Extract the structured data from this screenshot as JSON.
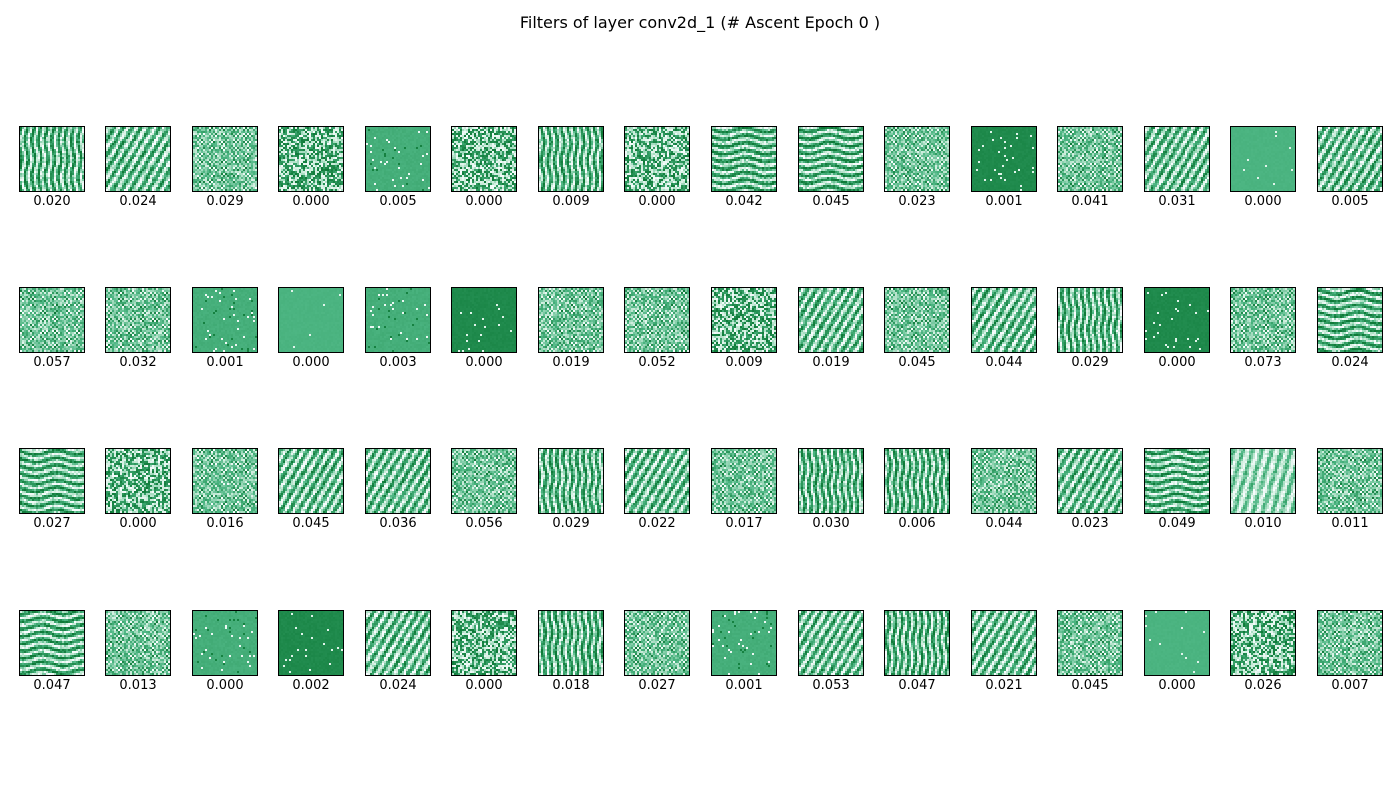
{
  "chart_data": {
    "type": "heatmap",
    "title": "Filters of layer conv2d_1 (# Ascent Epoch 0 )",
    "layout": "grid",
    "grid": {
      "rows": 4,
      "cols": 16
    },
    "colormap": "BuGn",
    "axes_visible": false,
    "filters": [
      {
        "index": 0,
        "label": "0.020",
        "value": 0.02,
        "pattern": "vstreak"
      },
      {
        "index": 1,
        "label": "0.024",
        "value": 0.024,
        "pattern": "diag"
      },
      {
        "index": 2,
        "label": "0.029",
        "value": 0.029,
        "pattern": "fine"
      },
      {
        "index": 3,
        "label": "0.000",
        "value": 0.0,
        "pattern": "noise"
      },
      {
        "index": 4,
        "label": "0.005",
        "value": 0.005,
        "pattern": "speck"
      },
      {
        "index": 5,
        "label": "0.000",
        "value": 0.0,
        "pattern": "noise"
      },
      {
        "index": 6,
        "label": "0.009",
        "value": 0.009,
        "pattern": "vstreak"
      },
      {
        "index": 7,
        "label": "0.000",
        "value": 0.0,
        "pattern": "noise"
      },
      {
        "index": 8,
        "label": "0.042",
        "value": 0.042,
        "pattern": "hstreak"
      },
      {
        "index": 9,
        "label": "0.045",
        "value": 0.045,
        "pattern": "hstreak"
      },
      {
        "index": 10,
        "label": "0.023",
        "value": 0.023,
        "pattern": "fine"
      },
      {
        "index": 11,
        "label": "0.001",
        "value": 0.001,
        "pattern": "dark"
      },
      {
        "index": 12,
        "label": "0.041",
        "value": 0.041,
        "pattern": "fine"
      },
      {
        "index": 13,
        "label": "0.031",
        "value": 0.031,
        "pattern": "diag"
      },
      {
        "index": 14,
        "label": "0.000",
        "value": 0.0,
        "pattern": "flat"
      },
      {
        "index": 15,
        "label": "0.005",
        "value": 0.005,
        "pattern": "diag"
      },
      {
        "index": 16,
        "label": "0.057",
        "value": 0.057,
        "pattern": "fine"
      },
      {
        "index": 17,
        "label": "0.032",
        "value": 0.032,
        "pattern": "fine"
      },
      {
        "index": 18,
        "label": "0.001",
        "value": 0.001,
        "pattern": "speck"
      },
      {
        "index": 19,
        "label": "0.000",
        "value": 0.0,
        "pattern": "flat"
      },
      {
        "index": 20,
        "label": "0.003",
        "value": 0.003,
        "pattern": "speck"
      },
      {
        "index": 21,
        "label": "0.000",
        "value": 0.0,
        "pattern": "dark"
      },
      {
        "index": 22,
        "label": "0.019",
        "value": 0.019,
        "pattern": "fine"
      },
      {
        "index": 23,
        "label": "0.052",
        "value": 0.052,
        "pattern": "fine"
      },
      {
        "index": 24,
        "label": "0.009",
        "value": 0.009,
        "pattern": "noise"
      },
      {
        "index": 25,
        "label": "0.019",
        "value": 0.019,
        "pattern": "diag"
      },
      {
        "index": 26,
        "label": "0.045",
        "value": 0.045,
        "pattern": "fine"
      },
      {
        "index": 27,
        "label": "0.044",
        "value": 0.044,
        "pattern": "diag"
      },
      {
        "index": 28,
        "label": "0.029",
        "value": 0.029,
        "pattern": "vstreak"
      },
      {
        "index": 29,
        "label": "0.000",
        "value": 0.0,
        "pattern": "dark"
      },
      {
        "index": 30,
        "label": "0.073",
        "value": 0.073,
        "pattern": "fine"
      },
      {
        "index": 31,
        "label": "0.024",
        "value": 0.024,
        "pattern": "hstreak"
      },
      {
        "index": 32,
        "label": "0.027",
        "value": 0.027,
        "pattern": "hstreak"
      },
      {
        "index": 33,
        "label": "0.000",
        "value": 0.0,
        "pattern": "noise"
      },
      {
        "index": 34,
        "label": "0.016",
        "value": 0.016,
        "pattern": "fine"
      },
      {
        "index": 35,
        "label": "0.045",
        "value": 0.045,
        "pattern": "diag"
      },
      {
        "index": 36,
        "label": "0.036",
        "value": 0.036,
        "pattern": "diag"
      },
      {
        "index": 37,
        "label": "0.056",
        "value": 0.056,
        "pattern": "fine"
      },
      {
        "index": 38,
        "label": "0.029",
        "value": 0.029,
        "pattern": "vstreak"
      },
      {
        "index": 39,
        "label": "0.022",
        "value": 0.022,
        "pattern": "diag"
      },
      {
        "index": 40,
        "label": "0.017",
        "value": 0.017,
        "pattern": "fine"
      },
      {
        "index": 41,
        "label": "0.030",
        "value": 0.03,
        "pattern": "vstreak"
      },
      {
        "index": 42,
        "label": "0.006",
        "value": 0.006,
        "pattern": "vstreak"
      },
      {
        "index": 43,
        "label": "0.044",
        "value": 0.044,
        "pattern": "fine"
      },
      {
        "index": 44,
        "label": "0.023",
        "value": 0.023,
        "pattern": "diag"
      },
      {
        "index": 45,
        "label": "0.049",
        "value": 0.049,
        "pattern": "hstreak"
      },
      {
        "index": 46,
        "label": "0.010",
        "value": 0.01,
        "pattern": "light"
      },
      {
        "index": 47,
        "label": "0.011",
        "value": 0.011,
        "pattern": "fine"
      },
      {
        "index": 48,
        "label": "0.047",
        "value": 0.047,
        "pattern": "hstreak"
      },
      {
        "index": 49,
        "label": "0.013",
        "value": 0.013,
        "pattern": "fine"
      },
      {
        "index": 50,
        "label": "0.000",
        "value": 0.0,
        "pattern": "speck"
      },
      {
        "index": 51,
        "label": "0.002",
        "value": 0.002,
        "pattern": "dark"
      },
      {
        "index": 52,
        "label": "0.024",
        "value": 0.024,
        "pattern": "diag"
      },
      {
        "index": 53,
        "label": "0.000",
        "value": 0.0,
        "pattern": "noise"
      },
      {
        "index": 54,
        "label": "0.018",
        "value": 0.018,
        "pattern": "vstreak"
      },
      {
        "index": 55,
        "label": "0.027",
        "value": 0.027,
        "pattern": "fine"
      },
      {
        "index": 56,
        "label": "0.001",
        "value": 0.001,
        "pattern": "speck"
      },
      {
        "index": 57,
        "label": "0.053",
        "value": 0.053,
        "pattern": "diag"
      },
      {
        "index": 58,
        "label": "0.047",
        "value": 0.047,
        "pattern": "vstreak"
      },
      {
        "index": 59,
        "label": "0.021",
        "value": 0.021,
        "pattern": "diag"
      },
      {
        "index": 60,
        "label": "0.045",
        "value": 0.045,
        "pattern": "fine"
      },
      {
        "index": 61,
        "label": "0.000",
        "value": 0.0,
        "pattern": "flat"
      },
      {
        "index": 62,
        "label": "0.026",
        "value": 0.026,
        "pattern": "noise"
      },
      {
        "index": 63,
        "label": "0.007",
        "value": 0.007,
        "pattern": "fine"
      }
    ]
  },
  "colors": {
    "background": "#ffffff",
    "tile_border": "#000000",
    "dark_green": "#0e7a38",
    "mid_green": "#4cb582",
    "light_green": "#c9ebd9",
    "white": "#f7fcfd"
  }
}
